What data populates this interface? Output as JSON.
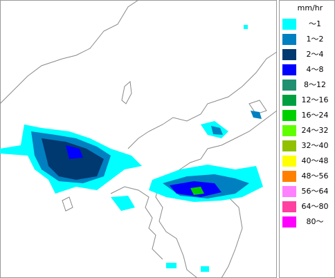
{
  "legend": {
    "unit": "mm/hr",
    "items": [
      {
        "label": "～1",
        "color": "#00ffff"
      },
      {
        "label": "1～2",
        "color": "#0080c0"
      },
      {
        "label": "2～4",
        "color": "#003870"
      },
      {
        "label": "4～8",
        "color": "#0000ff"
      },
      {
        "label": "8～12",
        "color": "#209070"
      },
      {
        "label": "12～16",
        "color": "#00a040"
      },
      {
        "label": "16～24",
        "color": "#00d000"
      },
      {
        "label": "24～32",
        "color": "#60ff00"
      },
      {
        "label": "32～40",
        "color": "#90c000"
      },
      {
        "label": "40～48",
        "color": "#ffff00"
      },
      {
        "label": "48～56",
        "color": "#ff8000"
      },
      {
        "label": "56～64",
        "color": "#ff80ff"
      },
      {
        "label": "64～80",
        "color": "#ff40a0"
      },
      {
        "label": "80～",
        "color": "#ff00ff"
      }
    ]
  }
}
